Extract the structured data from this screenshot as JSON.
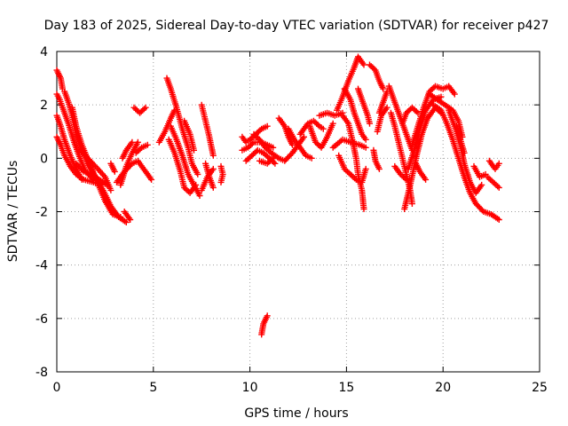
{
  "chart_data": {
    "type": "scatter",
    "title": "Day 183 of 2025, Sidereal Day-to-day VTEC variation (SDTVAR) for receiver p427",
    "xlabel": "GPS time / hours",
    "ylabel": "SDTVAR / TECUs",
    "xlim": [
      0,
      25
    ],
    "ylim": [
      -8,
      4
    ],
    "xticks": [
      0,
      5,
      10,
      15,
      20,
      25
    ],
    "yticks": [
      -8,
      -6,
      -4,
      -2,
      0,
      2,
      4
    ],
    "grid": true,
    "marker": "+",
    "color": "#ff0000",
    "tracks": [
      [
        [
          0.0,
          3.3
        ],
        [
          0.2,
          3.0
        ],
        [
          0.3,
          2.6
        ]
      ],
      [
        [
          0.0,
          2.4
        ],
        [
          0.15,
          2.2
        ],
        [
          0.3,
          1.9
        ],
        [
          0.6,
          1.3
        ],
        [
          0.9,
          0.6
        ],
        [
          1.2,
          0.0
        ],
        [
          1.5,
          -0.5
        ],
        [
          1.9,
          -0.8
        ]
      ],
      [
        [
          0.0,
          1.6
        ],
        [
          0.2,
          1.2
        ],
        [
          0.4,
          0.7
        ],
        [
          0.7,
          0.1
        ],
        [
          1.0,
          -0.4
        ],
        [
          1.3,
          -0.8
        ]
      ],
      [
        [
          0.0,
          0.8
        ],
        [
          0.2,
          0.5
        ],
        [
          0.4,
          0.1
        ],
        [
          0.7,
          -0.3
        ],
        [
          1.0,
          -0.6
        ],
        [
          1.4,
          -0.8
        ],
        [
          1.9,
          -0.9
        ],
        [
          2.3,
          -1.0
        ]
      ],
      [
        [
          0.4,
          2.5
        ],
        [
          0.6,
          2.1
        ],
        [
          0.8,
          1.6
        ],
        [
          1.0,
          0.9
        ],
        [
          1.3,
          0.3
        ],
        [
          1.6,
          -0.2
        ],
        [
          2.0,
          -0.7
        ],
        [
          2.4,
          -1.2
        ],
        [
          2.8,
          -1.8
        ],
        [
          3.2,
          -2.2
        ],
        [
          3.6,
          -2.4
        ]
      ],
      [
        [
          0.8,
          1.9
        ],
        [
          1.0,
          1.2
        ],
        [
          1.3,
          0.5
        ],
        [
          1.7,
          -0.2
        ],
        [
          2.1,
          -0.9
        ],
        [
          2.5,
          -1.6
        ],
        [
          2.9,
          -2.1
        ],
        [
          3.3,
          -2.2
        ]
      ],
      [
        [
          1.0,
          -0.2
        ],
        [
          1.4,
          -0.5
        ],
        [
          1.8,
          -0.6
        ],
        [
          2.2,
          -0.8
        ],
        [
          2.6,
          -1.0
        ]
      ],
      [
        [
          1.2,
          0.3
        ],
        [
          1.6,
          0.0
        ],
        [
          2.0,
          -0.3
        ],
        [
          2.5,
          -0.7
        ],
        [
          2.8,
          -1.2
        ]
      ],
      [
        [
          3.5,
          -2.0
        ],
        [
          3.8,
          -2.3
        ]
      ],
      [
        [
          2.8,
          -0.2
        ],
        [
          3.0,
          -0.5
        ]
      ],
      [
        [
          3.3,
          -1.0
        ],
        [
          3.6,
          -0.3
        ],
        [
          3.9,
          0.2
        ],
        [
          4.2,
          0.6
        ]
      ],
      [
        [
          3.4,
          0.0
        ],
        [
          3.6,
          0.3
        ],
        [
          3.9,
          0.6
        ]
      ],
      [
        [
          3.1,
          -0.9
        ],
        [
          3.5,
          -0.5
        ],
        [
          3.9,
          -0.2
        ],
        [
          4.2,
          -0.1
        ],
        [
          4.5,
          -0.4
        ],
        [
          4.9,
          -0.8
        ]
      ],
      [
        [
          4.0,
          1.9
        ],
        [
          4.3,
          1.7
        ],
        [
          4.6,
          1.9
        ]
      ],
      [
        [
          4.1,
          0.2
        ],
        [
          4.4,
          0.4
        ],
        [
          4.7,
          0.5
        ]
      ],
      [
        [
          5.3,
          0.6
        ],
        [
          5.6,
          1.0
        ],
        [
          5.9,
          1.5
        ],
        [
          6.1,
          1.8
        ]
      ],
      [
        [
          5.7,
          3.0
        ],
        [
          5.9,
          2.6
        ],
        [
          6.2,
          1.9
        ],
        [
          6.5,
          1.1
        ],
        [
          6.8,
          0.4
        ],
        [
          7.0,
          -0.2
        ],
        [
          7.3,
          -0.6
        ]
      ],
      [
        [
          5.9,
          1.2
        ],
        [
          6.2,
          0.7
        ],
        [
          6.5,
          0.1
        ],
        [
          6.8,
          -0.6
        ],
        [
          7.1,
          -1.0
        ],
        [
          7.4,
          -1.4
        ]
      ],
      [
        [
          5.8,
          0.7
        ],
        [
          6.1,
          0.2
        ],
        [
          6.4,
          -0.5
        ],
        [
          6.6,
          -1.1
        ],
        [
          6.9,
          -1.3
        ],
        [
          7.2,
          -1.0
        ]
      ],
      [
        [
          6.6,
          1.4
        ],
        [
          6.9,
          0.9
        ],
        [
          7.1,
          0.3
        ]
      ],
      [
        [
          7.5,
          2.0
        ],
        [
          7.7,
          1.4
        ],
        [
          7.9,
          0.8
        ],
        [
          8.1,
          0.1
        ]
      ],
      [
        [
          7.7,
          -0.2
        ],
        [
          7.9,
          -0.7
        ],
        [
          8.1,
          -1.1
        ]
      ],
      [
        [
          7.5,
          -1.2
        ],
        [
          7.8,
          -0.7
        ],
        [
          8.1,
          -0.4
        ]
      ],
      [
        [
          8.5,
          -0.3
        ],
        [
          8.6,
          -0.6
        ],
        [
          8.5,
          -0.9
        ]
      ],
      [
        [
          9.6,
          0.8
        ],
        [
          9.8,
          0.6
        ],
        [
          10.0,
          0.7
        ],
        [
          10.3,
          0.9
        ],
        [
          10.6,
          1.1
        ],
        [
          10.9,
          1.2
        ]
      ],
      [
        [
          9.6,
          0.3
        ],
        [
          9.9,
          0.4
        ],
        [
          10.2,
          0.6
        ],
        [
          10.6,
          0.6
        ],
        [
          10.9,
          0.5
        ],
        [
          11.2,
          0.4
        ]
      ],
      [
        [
          9.8,
          -0.1
        ],
        [
          10.1,
          0.1
        ],
        [
          10.4,
          0.3
        ],
        [
          10.7,
          0.2
        ],
        [
          11.0,
          0.0
        ],
        [
          11.3,
          -0.2
        ]
      ],
      [
        [
          10.2,
          0.9
        ],
        [
          10.5,
          0.7
        ],
        [
          10.8,
          0.4
        ],
        [
          11.1,
          0.2
        ],
        [
          11.5,
          0.0
        ],
        [
          11.8,
          -0.1
        ],
        [
          12.2,
          0.2
        ],
        [
          12.5,
          0.5
        ],
        [
          12.8,
          0.8
        ]
      ],
      [
        [
          10.5,
          -0.1
        ],
        [
          10.9,
          -0.2
        ],
        [
          11.2,
          0.0
        ]
      ],
      [
        [
          10.6,
          -6.6
        ],
        [
          10.7,
          -6.2
        ],
        [
          10.9,
          -5.9
        ]
      ],
      [
        [
          11.5,
          1.5
        ],
        [
          11.8,
          1.2
        ],
        [
          12.0,
          0.8
        ],
        [
          12.2,
          0.5
        ]
      ],
      [
        [
          12.0,
          1.1
        ],
        [
          12.3,
          0.7
        ],
        [
          12.6,
          0.4
        ],
        [
          12.9,
          0.1
        ],
        [
          13.2,
          0.0
        ]
      ],
      [
        [
          12.6,
          0.9
        ],
        [
          13.0,
          1.3
        ],
        [
          13.3,
          1.4
        ],
        [
          13.6,
          1.2
        ],
        [
          13.8,
          1.1
        ]
      ],
      [
        [
          13.1,
          1.2
        ],
        [
          13.4,
          0.6
        ],
        [
          13.7,
          0.4
        ],
        [
          14.0,
          0.8
        ],
        [
          14.3,
          1.3
        ]
      ],
      [
        [
          13.6,
          1.6
        ],
        [
          14.0,
          1.7
        ],
        [
          14.4,
          1.6
        ],
        [
          14.8,
          1.7
        ]
      ],
      [
        [
          14.5,
          1.8
        ],
        [
          14.8,
          2.3
        ],
        [
          15.1,
          2.9
        ],
        [
          15.4,
          3.4
        ],
        [
          15.6,
          3.8
        ],
        [
          15.9,
          3.5
        ]
      ],
      [
        [
          14.9,
          2.6
        ],
        [
          15.2,
          2.2
        ],
        [
          15.4,
          1.7
        ],
        [
          15.6,
          1.3
        ],
        [
          15.8,
          0.9
        ],
        [
          16.0,
          0.7
        ]
      ],
      [
        [
          14.8,
          1.6
        ],
        [
          15.1,
          1.3
        ],
        [
          15.3,
          0.7
        ],
        [
          15.5,
          0.0
        ],
        [
          15.6,
          -0.6
        ],
        [
          15.8,
          -1.2
        ],
        [
          15.9,
          -1.9
        ]
      ],
      [
        [
          15.6,
          2.6
        ],
        [
          15.9,
          2.0
        ],
        [
          16.1,
          1.6
        ],
        [
          16.2,
          1.3
        ]
      ],
      [
        [
          14.6,
          0.1
        ],
        [
          14.9,
          -0.4
        ],
        [
          15.2,
          -0.6
        ],
        [
          15.5,
          -0.8
        ],
        [
          15.8,
          -0.9
        ],
        [
          16.0,
          -0.4
        ]
      ],
      [
        [
          14.3,
          0.4
        ],
        [
          14.8,
          0.7
        ],
        [
          15.2,
          0.6
        ],
        [
          15.7,
          0.5
        ],
        [
          16.0,
          0.4
        ]
      ],
      [
        [
          16.2,
          3.5
        ],
        [
          16.5,
          3.3
        ],
        [
          16.7,
          2.9
        ],
        [
          16.9,
          2.6
        ]
      ],
      [
        [
          16.7,
          1.7
        ],
        [
          16.9,
          2.1
        ],
        [
          17.1,
          2.5
        ]
      ],
      [
        [
          16.4,
          0.3
        ],
        [
          16.5,
          -0.1
        ],
        [
          16.7,
          -0.4
        ]
      ],
      [
        [
          16.6,
          1.0
        ],
        [
          16.8,
          1.6
        ],
        [
          17.1,
          1.9
        ]
      ],
      [
        [
          17.2,
          2.7
        ],
        [
          17.4,
          2.3
        ],
        [
          17.6,
          1.9
        ],
        [
          17.8,
          1.5
        ],
        [
          18.0,
          1.1
        ],
        [
          18.2,
          0.7
        ],
        [
          18.4,
          0.3
        ]
      ],
      [
        [
          17.3,
          1.7
        ],
        [
          17.5,
          1.2
        ],
        [
          17.7,
          0.6
        ],
        [
          17.9,
          0.0
        ],
        [
          18.1,
          -0.6
        ],
        [
          18.3,
          -1.2
        ],
        [
          18.4,
          -1.7
        ]
      ],
      [
        [
          17.5,
          -0.3
        ],
        [
          17.8,
          -0.6
        ],
        [
          18.1,
          -0.8
        ]
      ],
      [
        [
          17.9,
          1.3
        ],
        [
          18.1,
          1.7
        ],
        [
          18.4,
          1.9
        ],
        [
          18.7,
          1.7
        ]
      ],
      [
        [
          18.0,
          -1.9
        ],
        [
          18.3,
          -1.0
        ],
        [
          18.6,
          0.0
        ],
        [
          18.9,
          0.9
        ],
        [
          19.2,
          1.5
        ],
        [
          19.6,
          1.9
        ],
        [
          19.9,
          1.7
        ]
      ],
      [
        [
          18.2,
          -0.4
        ],
        [
          18.5,
          0.3
        ],
        [
          18.8,
          1.1
        ],
        [
          19.1,
          1.8
        ],
        [
          19.5,
          2.2
        ],
        [
          19.9,
          2.3
        ]
      ],
      [
        [
          18.4,
          0.5
        ],
        [
          18.7,
          1.2
        ],
        [
          19.0,
          1.9
        ],
        [
          19.3,
          2.5
        ],
        [
          19.6,
          2.7
        ],
        [
          20.0,
          2.6
        ],
        [
          20.3,
          2.7
        ],
        [
          20.6,
          2.4
        ]
      ],
      [
        [
          18.6,
          -0.2
        ],
        [
          18.8,
          -0.5
        ],
        [
          19.1,
          -0.8
        ]
      ],
      [
        [
          19.3,
          2.4
        ],
        [
          19.7,
          2.2
        ],
        [
          20.1,
          2.0
        ],
        [
          20.5,
          1.8
        ],
        [
          20.8,
          1.4
        ],
        [
          21.0,
          0.8
        ]
      ],
      [
        [
          19.5,
          2.0
        ],
        [
          19.9,
          1.8
        ],
        [
          20.2,
          1.3
        ],
        [
          20.5,
          0.7
        ],
        [
          20.8,
          0.0
        ],
        [
          21.1,
          -0.7
        ],
        [
          21.4,
          -1.3
        ],
        [
          21.7,
          -1.7
        ],
        [
          22.1,
          -2.0
        ],
        [
          22.5,
          -2.1
        ],
        [
          22.9,
          -2.3
        ]
      ],
      [
        [
          20.3,
          1.8
        ],
        [
          20.6,
          1.2
        ],
        [
          20.9,
          0.5
        ],
        [
          21.1,
          -0.2
        ],
        [
          21.4,
          -0.9
        ],
        [
          21.7,
          -1.3
        ],
        [
          22.0,
          -1.0
        ]
      ],
      [
        [
          20.7,
          1.2
        ],
        [
          20.9,
          0.7
        ],
        [
          21.1,
          0.2
        ]
      ],
      [
        [
          21.6,
          -0.3
        ],
        [
          21.9,
          -0.7
        ],
        [
          22.2,
          -0.6
        ]
      ],
      [
        [
          22.4,
          -0.1
        ],
        [
          22.7,
          -0.4
        ],
        [
          22.9,
          -0.2
        ]
      ],
      [
        [
          22.3,
          -0.7
        ],
        [
          22.6,
          -0.9
        ],
        [
          22.9,
          -1.1
        ]
      ]
    ]
  }
}
